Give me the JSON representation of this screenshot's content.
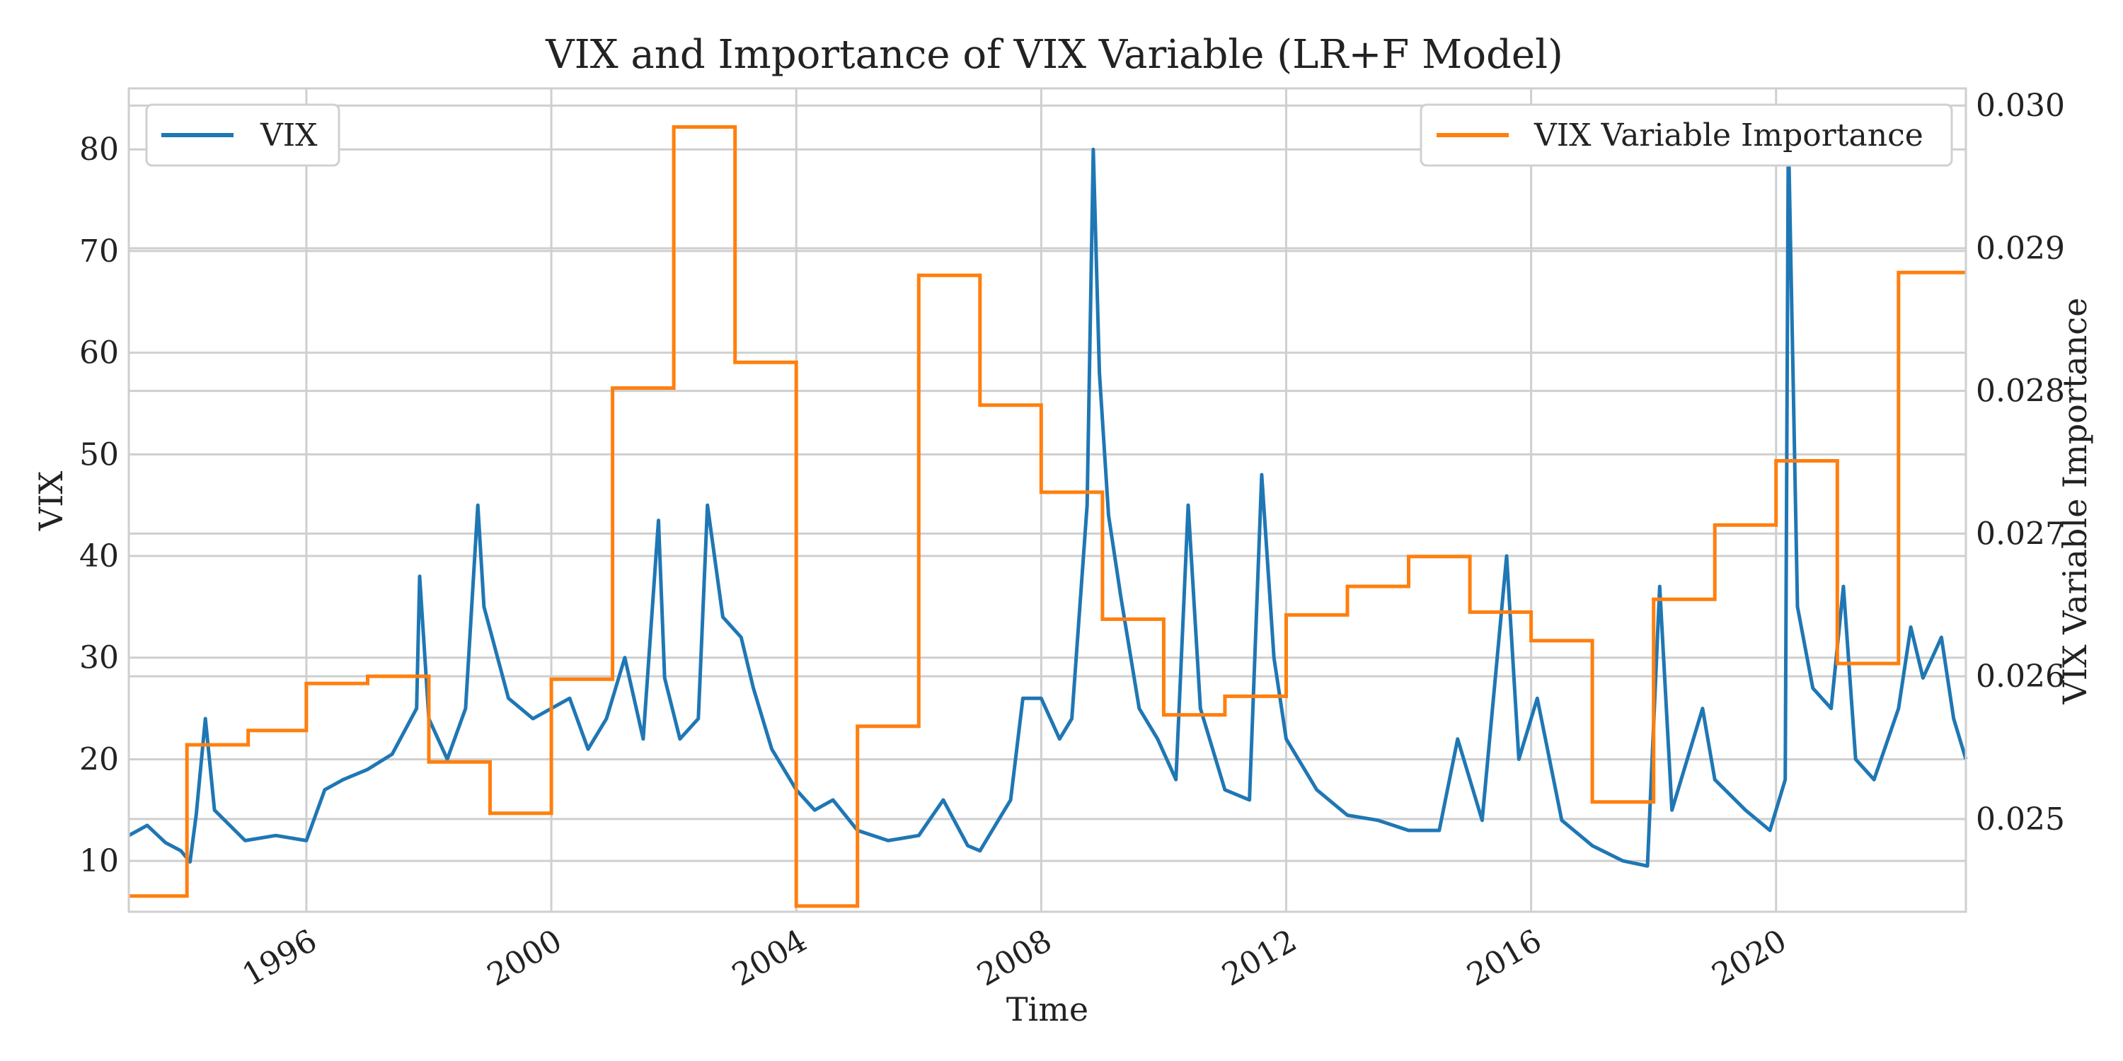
{
  "chart_data": {
    "type": "line",
    "title": "VIX and Importance of VIX Variable (LR+F Model)",
    "xlabel": "Time",
    "ylabel_left": "VIX",
    "ylabel_right": "VIX Variable Importance",
    "x_range": [
      1993.1,
      2023.1
    ],
    "ylim_left": [
      5,
      86
    ],
    "ylim_right": [
      0.02435,
      0.03012
    ],
    "x_ticks": [
      1996,
      2000,
      2004,
      2008,
      2012,
      2016,
      2020
    ],
    "x_tick_labels": [
      "1996",
      "2000",
      "2004",
      "2008",
      "2012",
      "2016",
      "2020"
    ],
    "y_left_ticks": [
      10,
      20,
      30,
      40,
      50,
      60,
      70,
      80
    ],
    "y_left_tick_labels": [
      "10",
      "20",
      "30",
      "40",
      "50",
      "60",
      "70",
      "80"
    ],
    "y_right_ticks": [
      0.025,
      0.026,
      0.027,
      0.028,
      0.029,
      0.03
    ],
    "y_right_tick_labels": [
      "0.025",
      "0.026",
      "0.027",
      "0.028",
      "0.029",
      "0.030"
    ],
    "grid": true,
    "series": [
      {
        "name": "VIX",
        "color": "#1f77b4",
        "axis": "left",
        "legend_position": "top-left",
        "points": [
          [
            1993.1,
            12.5
          ],
          [
            1993.4,
            13.5
          ],
          [
            1993.7,
            11.8
          ],
          [
            1993.95,
            11.0
          ],
          [
            1994.1,
            9.9
          ],
          [
            1994.2,
            14.5
          ],
          [
            1994.35,
            24.0
          ],
          [
            1994.5,
            15.0
          ],
          [
            1994.75,
            13.5
          ],
          [
            1995.0,
            12.0
          ],
          [
            1995.5,
            12.5
          ],
          [
            1996.0,
            12.0
          ],
          [
            1996.3,
            17.0
          ],
          [
            1996.6,
            18.0
          ],
          [
            1997.0,
            19.0
          ],
          [
            1997.4,
            20.5
          ],
          [
            1997.8,
            25.0
          ],
          [
            1997.85,
            38.0
          ],
          [
            1998.0,
            24.0
          ],
          [
            1998.3,
            20.0
          ],
          [
            1998.6,
            25.0
          ],
          [
            1998.8,
            45.0
          ],
          [
            1998.9,
            35.0
          ],
          [
            1999.3,
            26.0
          ],
          [
            1999.7,
            24.0
          ],
          [
            2000.0,
            25.0
          ],
          [
            2000.3,
            26.0
          ],
          [
            2000.6,
            21.0
          ],
          [
            2000.9,
            24.0
          ],
          [
            2001.2,
            30.0
          ],
          [
            2001.5,
            22.0
          ],
          [
            2001.75,
            43.5
          ],
          [
            2001.85,
            28.0
          ],
          [
            2002.1,
            22.0
          ],
          [
            2002.4,
            24.0
          ],
          [
            2002.55,
            45.0
          ],
          [
            2002.8,
            34.0
          ],
          [
            2003.1,
            32.0
          ],
          [
            2003.3,
            27.0
          ],
          [
            2003.6,
            21.0
          ],
          [
            2004.0,
            17.0
          ],
          [
            2004.3,
            15.0
          ],
          [
            2004.6,
            16.0
          ],
          [
            2005.0,
            13.0
          ],
          [
            2005.5,
            12.0
          ],
          [
            2006.0,
            12.5
          ],
          [
            2006.4,
            16.0
          ],
          [
            2006.8,
            11.5
          ],
          [
            2007.0,
            11.0
          ],
          [
            2007.2,
            13.0
          ],
          [
            2007.5,
            16.0
          ],
          [
            2007.7,
            26.0
          ],
          [
            2008.0,
            26.0
          ],
          [
            2008.3,
            22.0
          ],
          [
            2008.5,
            24.0
          ],
          [
            2008.75,
            45.0
          ],
          [
            2008.85,
            80.0
          ],
          [
            2008.95,
            58.0
          ],
          [
            2009.1,
            44.0
          ],
          [
            2009.3,
            36.0
          ],
          [
            2009.6,
            25.0
          ],
          [
            2009.9,
            22.0
          ],
          [
            2010.2,
            18.0
          ],
          [
            2010.4,
            45.0
          ],
          [
            2010.6,
            25.0
          ],
          [
            2011.0,
            17.0
          ],
          [
            2011.4,
            16.0
          ],
          [
            2011.6,
            48.0
          ],
          [
            2011.8,
            30.0
          ],
          [
            2012.0,
            22.0
          ],
          [
            2012.5,
            17.0
          ],
          [
            2013.0,
            14.5
          ],
          [
            2013.5,
            14.0
          ],
          [
            2014.0,
            13.0
          ],
          [
            2014.5,
            13.0
          ],
          [
            2014.8,
            22.0
          ],
          [
            2015.2,
            14.0
          ],
          [
            2015.6,
            40.0
          ],
          [
            2015.8,
            20.0
          ],
          [
            2016.1,
            26.0
          ],
          [
            2016.5,
            14.0
          ],
          [
            2017.0,
            11.5
          ],
          [
            2017.5,
            10.0
          ],
          [
            2017.9,
            9.5
          ],
          [
            2018.1,
            37.0
          ],
          [
            2018.3,
            15.0
          ],
          [
            2018.8,
            25.0
          ],
          [
            2019.0,
            18.0
          ],
          [
            2019.5,
            15.0
          ],
          [
            2019.9,
            13.0
          ],
          [
            2020.15,
            18.0
          ],
          [
            2020.2,
            82.0
          ],
          [
            2020.35,
            35.0
          ],
          [
            2020.6,
            27.0
          ],
          [
            2020.9,
            25.0
          ],
          [
            2021.1,
            37.0
          ],
          [
            2021.3,
            20.0
          ],
          [
            2021.6,
            18.0
          ],
          [
            2022.0,
            25.0
          ],
          [
            2022.2,
            33.0
          ],
          [
            2022.4,
            28.0
          ],
          [
            2022.7,
            32.0
          ],
          [
            2022.9,
            24.0
          ],
          [
            2023.1,
            20.0
          ]
        ]
      },
      {
        "name": "VIX Variable Importance",
        "color": "#ff7f0e",
        "axis": "right",
        "legend_position": "top-right",
        "steps": [
          [
            1993.1,
            0.02446
          ],
          [
            1994.05,
            0.02552
          ],
          [
            1995.05,
            0.02562
          ],
          [
            1996.0,
            0.02595
          ],
          [
            1997.0,
            0.026
          ],
          [
            1998.0,
            0.0254
          ],
          [
            1999.0,
            0.02504
          ],
          [
            2000.0,
            0.02598
          ],
          [
            2001.0,
            0.02802
          ],
          [
            2002.0,
            0.02985
          ],
          [
            2003.0,
            0.0282
          ],
          [
            2004.0,
            0.02439
          ],
          [
            2005.0,
            0.02565
          ],
          [
            2006.0,
            0.02881
          ],
          [
            2007.0,
            0.0279
          ],
          [
            2008.0,
            0.02729
          ],
          [
            2009.0,
            0.0264
          ],
          [
            2010.0,
            0.02573
          ],
          [
            2011.0,
            0.02586
          ],
          [
            2012.0,
            0.02643
          ],
          [
            2013.0,
            0.02663
          ],
          [
            2014.0,
            0.02684
          ],
          [
            2015.0,
            0.02645
          ],
          [
            2016.0,
            0.02625
          ],
          [
            2017.0,
            0.02512
          ],
          [
            2018.0,
            0.02654
          ],
          [
            2019.0,
            0.02706
          ],
          [
            2020.0,
            0.02751
          ],
          [
            2021.0,
            0.02609
          ],
          [
            2022.0,
            0.02883
          ]
        ],
        "end_x": 2023.1
      }
    ]
  }
}
